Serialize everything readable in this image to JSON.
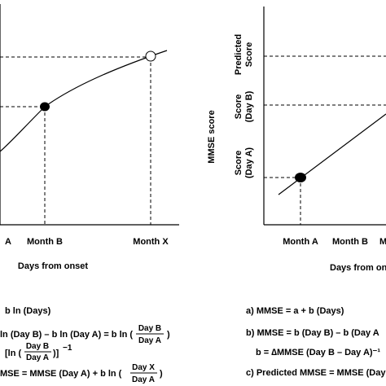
{
  "left_panel": {
    "x_tick_labels": [
      "A",
      "Month B",
      "Month X"
    ],
    "x_axis_label": "Days from onset",
    "equations": {
      "a_tail": "b ln (Days)",
      "b_part1": "ln (Day B) – b ln (Day A) = b ln (",
      "b_frac_num": "Day B",
      "b_frac_den": "Day A",
      "b_close": ")",
      "c_open": "[ln (",
      "c_frac_num": "Day B",
      "c_frac_den": "Day A",
      "c_close": ")]",
      "c_exp": "−1",
      "d_part1": "MSE = MMSE (Day A) + b ln (",
      "d_frac_num": "Day X",
      "d_frac_den": "Day A",
      "d_close": ")"
    }
  },
  "right_panel": {
    "y_axis_label": "MMSE score",
    "y_tick_labels": {
      "predicted_line1": "Predicted",
      "predicted_line2": "Score",
      "score_b_line1": "Score",
      "score_b_line2": "(Day B)",
      "score_a_line1": "Score",
      "score_a_line2": "(Day A)"
    },
    "x_tick_labels": [
      "Month A",
      "Month B",
      "Month X"
    ],
    "x_axis_label": "Days from on",
    "equations": {
      "a": "a) MMSE = a + b (Days)",
      "b1": "b) MMSE = b (Day B) – b (Day A",
      "b2": "b = ∆MMSE (Day B – Day A)⁻¹",
      "c": "c) Predicted MMSE = MMSE (Day A"
    }
  }
}
